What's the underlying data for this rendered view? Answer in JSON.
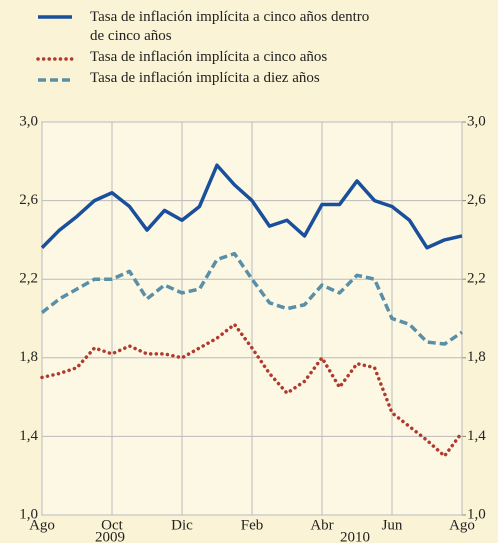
{
  "chart_data": {
    "type": "line",
    "x": [
      0,
      0.5,
      1,
      1.5,
      2,
      2.5,
      3,
      3.5,
      4,
      4.5,
      5,
      5.5,
      6,
      6.5,
      7,
      7.5,
      8,
      8.5,
      9,
      9.5,
      10,
      10.5,
      11,
      11.5,
      12
    ],
    "series": [
      {
        "name": "Tasa de inflación implícita a cinco años dentro de cinco años",
        "color": "#1a4f9c",
        "style": "solid",
        "values": [
          2.36,
          2.45,
          2.52,
          2.6,
          2.64,
          2.57,
          2.45,
          2.55,
          2.5,
          2.57,
          2.78,
          2.68,
          2.6,
          2.47,
          2.5,
          2.42,
          2.58,
          2.58,
          2.7,
          2.6,
          2.57,
          2.5,
          2.36,
          2.4,
          2.42
        ]
      },
      {
        "name": "Tasa de inflación implícita a cinco años",
        "color": "#b03a2e",
        "style": "dotted",
        "values": [
          1.7,
          1.72,
          1.75,
          1.85,
          1.82,
          1.86,
          1.82,
          1.82,
          1.8,
          1.85,
          1.9,
          1.97,
          1.85,
          1.72,
          1.62,
          1.68,
          1.8,
          1.65,
          1.77,
          1.75,
          1.52,
          1.45,
          1.38,
          1.3,
          1.42
        ]
      },
      {
        "name": "Tasa de inflación implícita a diez años",
        "color": "#5a8fa8",
        "style": "dashed",
        "values": [
          2.03,
          2.1,
          2.15,
          2.2,
          2.2,
          2.24,
          2.1,
          2.17,
          2.13,
          2.15,
          2.3,
          2.33,
          2.2,
          2.08,
          2.05,
          2.07,
          2.17,
          2.13,
          2.22,
          2.2,
          2.0,
          1.97,
          1.88,
          1.87,
          1.93
        ]
      }
    ],
    "xlim": [
      0,
      12
    ],
    "xticks": [
      {
        "value": 0,
        "label": "Ago"
      },
      {
        "value": 2,
        "label": "Oct"
      },
      {
        "value": 4,
        "label": "Dic"
      },
      {
        "value": 6,
        "label": "Feb"
      },
      {
        "value": 8,
        "label": "Abr"
      },
      {
        "value": 10,
        "label": "Jun"
      },
      {
        "value": 12,
        "label": "Ago"
      }
    ],
    "year_labels": [
      "2009",
      "2010"
    ],
    "ylim": [
      1.0,
      3.0
    ],
    "yticks": [
      {
        "value": 1.0,
        "label": "1,0"
      },
      {
        "value": 1.4,
        "label": "1,4"
      },
      {
        "value": 1.8,
        "label": "1,8"
      },
      {
        "value": 2.2,
        "label": "2,2"
      },
      {
        "value": 2.6,
        "label": "2,6"
      },
      {
        "value": 3.0,
        "label": "3,0"
      }
    ],
    "y2lim": [
      1.0,
      3.0
    ],
    "y2ticks": [
      {
        "value": 1.0,
        "label": "1,0"
      },
      {
        "value": 1.4,
        "label": "1,4"
      },
      {
        "value": 1.8,
        "label": "1,8"
      },
      {
        "value": 2.2,
        "label": "2,2"
      },
      {
        "value": 2.6,
        "label": "2,6"
      },
      {
        "value": 3.0,
        "label": "3,0"
      }
    ],
    "grid": true
  }
}
